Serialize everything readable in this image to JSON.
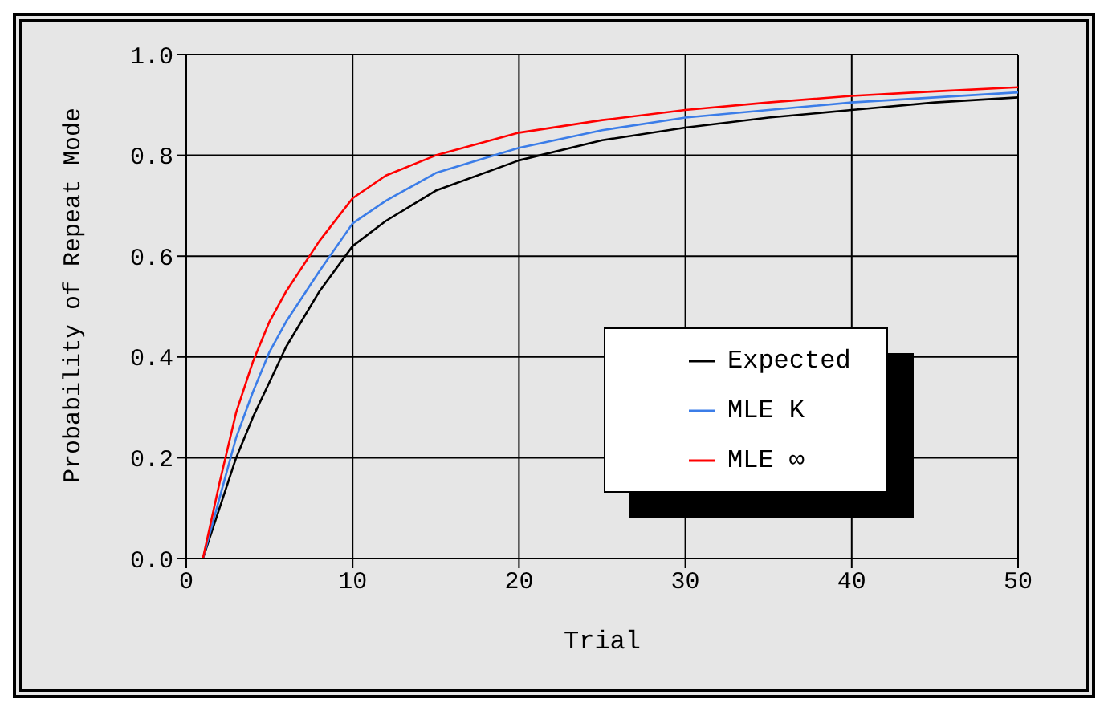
{
  "chart_data": {
    "type": "line",
    "xlabel": "Trial",
    "ylabel": "Probability of Repeat Mode",
    "x": [
      1,
      2,
      3,
      4,
      5,
      6,
      8,
      10,
      12,
      15,
      20,
      25,
      30,
      35,
      40,
      45,
      50
    ],
    "series": [
      {
        "name": "Expected",
        "color": "#000000",
        "values": [
          0,
          0.1,
          0.2,
          0.28,
          0.35,
          0.42,
          0.53,
          0.62,
          0.67,
          0.73,
          0.79,
          0.83,
          0.855,
          0.875,
          0.89,
          0.905,
          0.915
        ]
      },
      {
        "name": "MLE K",
        "color": "#3b7de8",
        "values": [
          0,
          0.12,
          0.24,
          0.33,
          0.41,
          0.47,
          0.57,
          0.665,
          0.71,
          0.765,
          0.815,
          0.85,
          0.875,
          0.89,
          0.905,
          0.915,
          0.925
        ]
      },
      {
        "name": "MLE ∞",
        "color": "#ff0000",
        "values": [
          0,
          0.15,
          0.29,
          0.39,
          0.47,
          0.53,
          0.63,
          0.715,
          0.76,
          0.8,
          0.845,
          0.87,
          0.89,
          0.905,
          0.918,
          0.927,
          0.935
        ]
      }
    ],
    "xlim": [
      0,
      50
    ],
    "xticks": [
      0,
      10,
      20,
      30,
      40,
      50
    ],
    "ylim": [
      0,
      1
    ],
    "yticks": [
      {
        "value": 0,
        "label": "0.0"
      },
      0.2,
      0.4,
      0.6,
      0.8,
      {
        "value": 1,
        "label": "1.0"
      }
    ],
    "grid": true,
    "legend": "right",
    "marker": "none",
    "line_style": "solid"
  }
}
